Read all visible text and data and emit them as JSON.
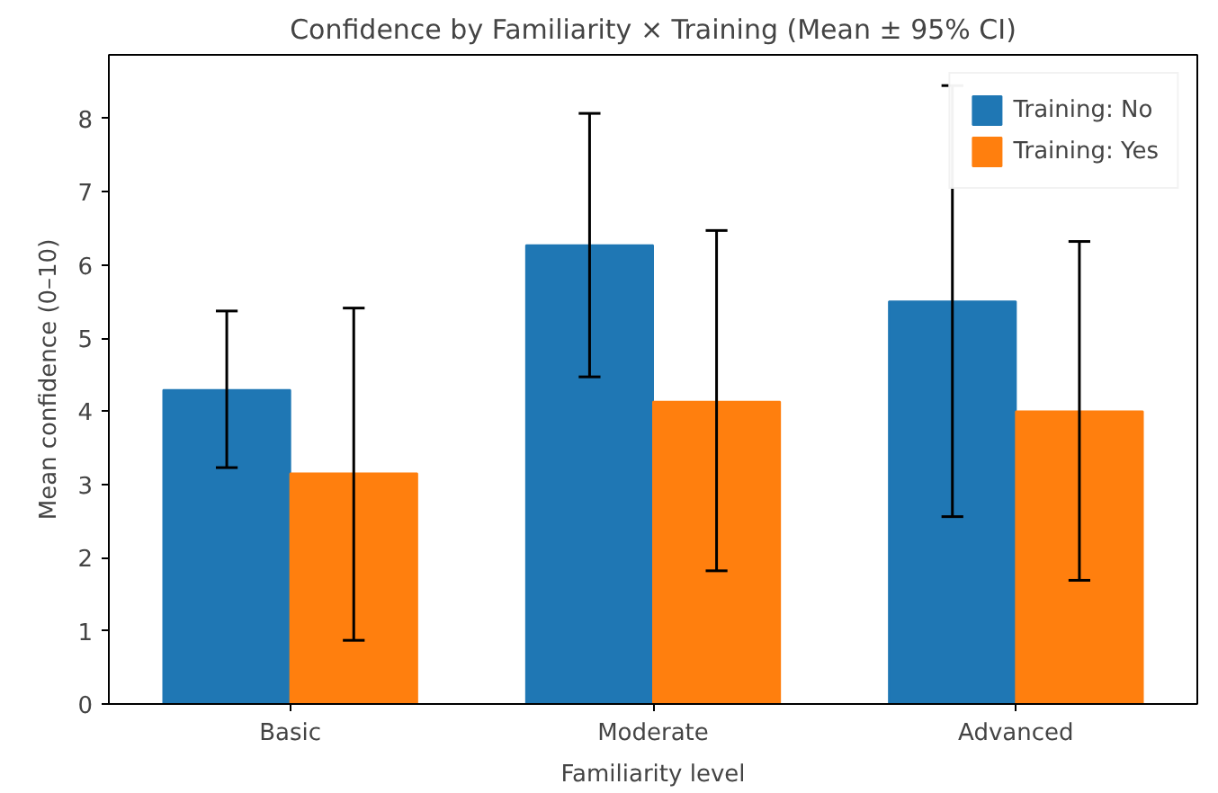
{
  "chart_data": {
    "type": "bar",
    "title": "Confidence by Familiarity × Training (Mean ± 95% CI)",
    "xlabel": "Familiarity level",
    "ylabel": "Mean confidence (0–10)",
    "categories": [
      "Basic",
      "Moderate",
      "Advanced"
    ],
    "series": [
      {
        "name": "Training: No",
        "color": "#1f77b4",
        "values": [
          4.29,
          6.27,
          5.5
        ],
        "errors": [
          [
            3.23,
            5.37
          ],
          [
            4.47,
            8.07
          ],
          [
            2.56,
            8.45
          ]
        ]
      },
      {
        "name": "Training: Yes",
        "color": "#ff7f0e",
        "values": [
          3.15,
          4.13,
          4.0
        ],
        "errors": [
          [
            0.87,
            5.41
          ],
          [
            1.82,
            6.47
          ],
          [
            1.69,
            6.32
          ]
        ]
      }
    ],
    "ylim": [
      0,
      8.87
    ],
    "yticks": [
      0,
      1,
      2,
      3,
      4,
      5,
      6,
      7,
      8
    ],
    "grid": false,
    "legend": "top right"
  }
}
